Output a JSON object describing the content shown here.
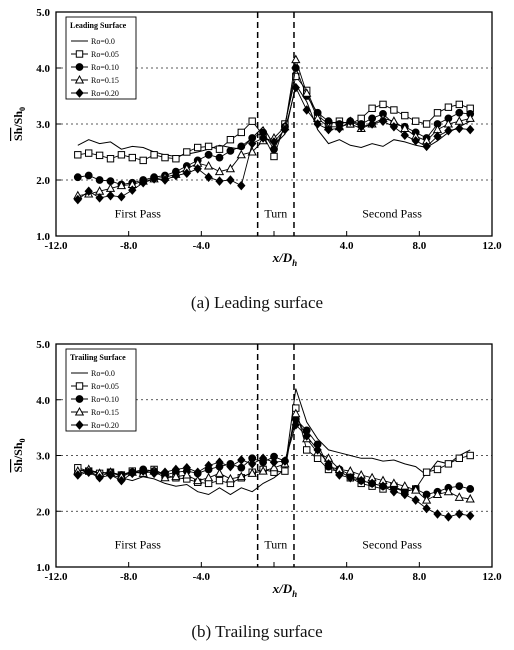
{
  "chart_data": [
    {
      "type": "line",
      "panel": "a",
      "legend_title": "Leading Surface",
      "legend_position": "top-left",
      "xlabel": "x/D_h",
      "ylabel": "Sh/Sh_0",
      "xlim": [
        -12.0,
        12.0
      ],
      "ylim": [
        1.0,
        5.0
      ],
      "xticks": [
        -12.0,
        -8.0,
        -4.0,
        0.0,
        4.0,
        8.0,
        12.0
      ],
      "xtick_labels": [
        "-12.0",
        "-8.0",
        "-4.0",
        "",
        "4.0",
        "8.0",
        "12.0"
      ],
      "yticks": [
        1.0,
        2.0,
        3.0,
        4.0,
        5.0
      ],
      "ytick_labels": [
        "1.0",
        "2.0",
        "3.0",
        "4.0",
        "5.0"
      ],
      "grid": "horizontal-dashed",
      "region_labels": [
        "First Pass",
        "Turn",
        "Second Pass"
      ],
      "dividers": [
        -0.9,
        1.1
      ],
      "x": [
        -10.8,
        -10.2,
        -9.6,
        -9.0,
        -8.4,
        -7.8,
        -7.2,
        -6.6,
        -6.0,
        -5.4,
        -4.8,
        -4.2,
        -3.6,
        -3.0,
        -2.4,
        -1.8,
        -1.2,
        -0.6,
        0.0,
        0.6,
        1.2,
        1.8,
        2.4,
        3.0,
        3.6,
        4.2,
        4.8,
        5.4,
        6.0,
        6.6,
        7.2,
        7.8,
        8.4,
        9.0,
        9.6,
        10.2,
        10.8
      ],
      "series": [
        {
          "name": "Ro=0.0",
          "marker": "none",
          "values": [
            2.62,
            2.72,
            2.65,
            2.68,
            2.55,
            2.6,
            2.58,
            2.5,
            2.45,
            2.42,
            2.46,
            2.5,
            2.55,
            2.62,
            2.58,
            2.55,
            2.75,
            2.95,
            2.62,
            2.82,
            3.7,
            3.4,
            2.9,
            2.65,
            2.72,
            2.62,
            2.58,
            2.65,
            2.6,
            2.72,
            2.68,
            2.62,
            2.58,
            2.7,
            2.85,
            2.95,
            3.05
          ]
        },
        {
          "name": "Ro=0.05",
          "marker": "open-square",
          "values": [
            2.45,
            2.48,
            2.44,
            2.38,
            2.45,
            2.4,
            2.35,
            2.45,
            2.4,
            2.38,
            2.5,
            2.58,
            2.6,
            2.55,
            2.72,
            2.85,
            3.05,
            2.8,
            2.42,
            3.0,
            3.85,
            3.6,
            3.15,
            3.0,
            3.05,
            3.0,
            3.1,
            3.28,
            3.35,
            3.25,
            3.15,
            3.05,
            3.0,
            3.2,
            3.3,
            3.35,
            3.28
          ]
        },
        {
          "name": "Ro=0.10",
          "marker": "filled-circle",
          "values": [
            2.05,
            2.08,
            2.0,
            1.98,
            1.92,
            1.95,
            2.0,
            2.05,
            2.08,
            2.15,
            2.25,
            2.35,
            2.45,
            2.4,
            2.52,
            2.6,
            2.75,
            2.85,
            2.55,
            2.95,
            4.0,
            3.5,
            3.2,
            3.05,
            3.0,
            3.05,
            3.0,
            3.1,
            3.18,
            3.0,
            2.95,
            2.85,
            2.75,
            3.0,
            3.1,
            3.2,
            3.18
          ]
        },
        {
          "name": "Ro=0.15",
          "marker": "open-triangle",
          "values": [
            1.72,
            1.75,
            1.8,
            1.85,
            1.9,
            1.92,
            1.98,
            2.02,
            2.05,
            2.1,
            2.2,
            2.3,
            2.25,
            2.15,
            2.2,
            2.45,
            2.5,
            2.7,
            2.75,
            2.95,
            4.15,
            3.55,
            3.1,
            2.95,
            2.95,
            3.0,
            2.92,
            3.0,
            3.1,
            3.05,
            2.92,
            2.78,
            2.7,
            2.9,
            3.0,
            3.05,
            3.1
          ]
        },
        {
          "name": "Ro=0.20",
          "marker": "filled-diamond",
          "values": [
            1.65,
            1.8,
            1.68,
            1.72,
            1.7,
            1.82,
            1.95,
            2.02,
            2.0,
            2.08,
            2.12,
            2.2,
            2.05,
            1.98,
            2.0,
            1.9,
            2.65,
            2.75,
            2.68,
            2.9,
            3.65,
            3.25,
            3.0,
            2.9,
            2.92,
            3.05,
            2.95,
            3.0,
            3.05,
            2.95,
            2.8,
            2.7,
            2.6,
            2.78,
            2.88,
            2.92,
            2.9
          ]
        }
      ]
    },
    {
      "type": "line",
      "panel": "b",
      "legend_title": "Trailing Surface",
      "legend_position": "top-left",
      "xlabel": "x/D_h",
      "ylabel": "Sh/Sh_0",
      "xlim": [
        -12.0,
        12.0
      ],
      "ylim": [
        1.0,
        5.0
      ],
      "xticks": [
        -12.0,
        -8.0,
        -4.0,
        0.0,
        4.0,
        8.0,
        12.0
      ],
      "xtick_labels": [
        "-12.0",
        "-8.0",
        "-4.0",
        "",
        "4.0",
        "8.0",
        "12.0"
      ],
      "yticks": [
        1.0,
        2.0,
        3.0,
        4.0,
        5.0
      ],
      "ytick_labels": [
        "1.0",
        "2.0",
        "3.0",
        "4.0",
        "5.0"
      ],
      "grid": "horizontal-dashed",
      "region_labels": [
        "First Pass",
        "Turn",
        "Second Pass"
      ],
      "dividers": [
        -0.9,
        1.1
      ],
      "x": [
        -10.8,
        -10.2,
        -9.6,
        -9.0,
        -8.4,
        -7.8,
        -7.2,
        -6.6,
        -6.0,
        -5.4,
        -4.8,
        -4.2,
        -3.6,
        -3.0,
        -2.4,
        -1.8,
        -1.2,
        -0.6,
        0.0,
        0.6,
        1.2,
        1.8,
        2.4,
        3.0,
        3.6,
        4.2,
        4.8,
        5.4,
        6.0,
        6.6,
        7.2,
        7.8,
        8.4,
        9.0,
        9.6,
        10.2,
        10.8
      ],
      "series": [
        {
          "name": "Ro=0.0",
          "marker": "none",
          "values": [
            2.75,
            2.7,
            2.72,
            2.65,
            2.6,
            2.55,
            2.62,
            2.58,
            2.5,
            2.45,
            2.48,
            2.35,
            2.3,
            2.42,
            2.3,
            2.42,
            2.35,
            2.5,
            2.6,
            2.75,
            4.2,
            3.6,
            3.3,
            3.1,
            3.05,
            3.0,
            2.95,
            2.95,
            2.9,
            2.92,
            2.85,
            2.8,
            2.65,
            2.9,
            2.85,
            3.0,
            3.1
          ]
        },
        {
          "name": "Ro=0.05",
          "marker": "open-square",
          "values": [
            2.78,
            2.72,
            2.68,
            2.7,
            2.65,
            2.72,
            2.7,
            2.75,
            2.65,
            2.6,
            2.58,
            2.52,
            2.5,
            2.55,
            2.5,
            2.6,
            2.7,
            2.75,
            2.7,
            2.72,
            3.85,
            3.1,
            2.95,
            2.75,
            2.72,
            2.6,
            2.5,
            2.45,
            2.4,
            2.45,
            2.35,
            2.4,
            2.7,
            2.75,
            2.85,
            2.95,
            3.0
          ]
        },
        {
          "name": "Ro=0.10",
          "marker": "filled-circle",
          "values": [
            2.68,
            2.72,
            2.62,
            2.7,
            2.65,
            2.7,
            2.75,
            2.72,
            2.65,
            2.7,
            2.72,
            2.68,
            2.75,
            2.8,
            2.85,
            2.78,
            2.95,
            2.88,
            2.98,
            2.9,
            3.65,
            3.45,
            3.2,
            2.8,
            2.75,
            2.65,
            2.55,
            2.5,
            2.45,
            2.42,
            2.35,
            2.4,
            2.3,
            2.35,
            2.42,
            2.45,
            2.4
          ]
        },
        {
          "name": "Ro=0.15",
          "marker": "open-triangle",
          "values": [
            2.72,
            2.75,
            2.68,
            2.7,
            2.62,
            2.7,
            2.68,
            2.72,
            2.6,
            2.62,
            2.65,
            2.55,
            2.6,
            2.68,
            2.58,
            2.62,
            2.68,
            2.72,
            2.78,
            2.85,
            3.75,
            3.3,
            3.05,
            2.95,
            2.75,
            2.72,
            2.65,
            2.6,
            2.55,
            2.5,
            2.45,
            2.38,
            2.2,
            2.3,
            2.35,
            2.25,
            2.22
          ]
        },
        {
          "name": "Ro=0.20",
          "marker": "filled-diamond",
          "values": [
            2.65,
            2.7,
            2.6,
            2.65,
            2.55,
            2.68,
            2.72,
            2.68,
            2.7,
            2.75,
            2.78,
            2.7,
            2.82,
            2.88,
            2.8,
            2.92,
            2.85,
            2.95,
            2.88,
            2.9,
            3.55,
            3.35,
            3.1,
            2.85,
            2.65,
            2.6,
            2.55,
            2.5,
            2.45,
            2.35,
            2.3,
            2.2,
            2.05,
            1.95,
            1.9,
            1.95,
            1.92
          ]
        }
      ]
    }
  ],
  "captions": {
    "a": "(a)  Leading  surface",
    "b": "(b)  Trailing  surface"
  }
}
